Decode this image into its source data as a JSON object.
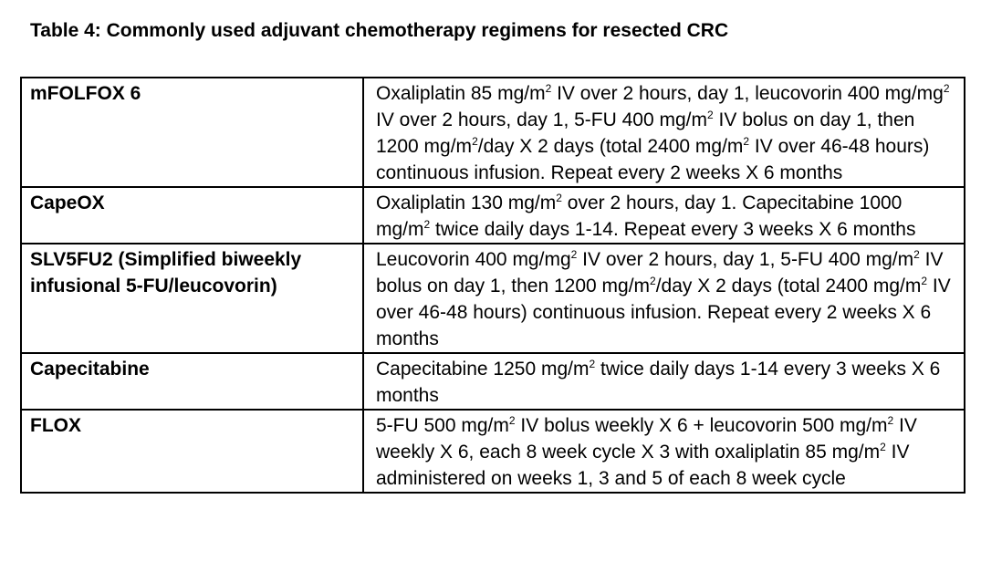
{
  "title": "Table 4: Commonly used adjuvant chemotherapy regimens for resected CRC",
  "rows": [
    {
      "regimen": "mFOLFOX 6",
      "description": [
        {
          "t": " Oxaliplatin 85 mg/m"
        },
        {
          "sup": "2"
        },
        {
          "t": " IV over 2 hours, day 1, leucovorin 400 mg/mg"
        },
        {
          "sup": "2"
        },
        {
          "t": " IV over 2 hours, day 1, 5-FU 400 mg/m"
        },
        {
          "sup": "2"
        },
        {
          "t": " IV bolus on day 1, then 1200 mg/m"
        },
        {
          "sup": "2"
        },
        {
          "t": "/day X 2 days (total 2400 mg/m"
        },
        {
          "sup": "2"
        },
        {
          "t": " IV over 46-48 hours) continuous infusion. Repeat every 2 weeks X 6 months"
        }
      ]
    },
    {
      "regimen": "CapeOX",
      "description": [
        {
          "t": " Oxaliplatin 130 mg/m"
        },
        {
          "sup": "2"
        },
        {
          "t": " over 2 hours, day 1. Capecitabine 1000 mg/m"
        },
        {
          "sup": "2"
        },
        {
          "t": " twice daily days 1-14.  Repeat every 3 weeks X 6 months"
        }
      ]
    },
    {
      "regimen": "SLV5FU2 (Simplified biweekly infusional 5-FU/leucovorin)",
      "description": [
        {
          "t": " Leucovorin 400 mg/mg"
        },
        {
          "sup": "2"
        },
        {
          "t": " IV over 2 hours, day 1, 5-FU 400 mg/m"
        },
        {
          "sup": "2"
        },
        {
          "t": " IV bolus on day 1, then 1200 mg/m"
        },
        {
          "sup": "2"
        },
        {
          "t": "/day X 2 days (total 2400 mg/m"
        },
        {
          "sup": "2"
        },
        {
          "t": " IV over 46-48 hours) continuous infusion. Repeat every 2 weeks X 6 months"
        }
      ]
    },
    {
      "regimen": "Capecitabine",
      "description": [
        {
          "t": " Capecitabine 1250 mg/m"
        },
        {
          "sup": "2"
        },
        {
          "t": " twice daily days 1-14 every 3 weeks X 6 months"
        }
      ]
    },
    {
      "regimen": "FLOX",
      "description": [
        {
          "t": " 5-FU 500 mg/m"
        },
        {
          "sup": "2"
        },
        {
          "t": " IV bolus weekly X 6 + leucovorin 500 mg/m"
        },
        {
          "sup": "2"
        },
        {
          "t": " IV weekly X 6, each 8 week cycle X 3 with oxaliplatin 85 mg/m"
        },
        {
          "sup": "2"
        },
        {
          "t": " IV administered on weeks 1, 3 and 5 of each 8 week cycle"
        }
      ]
    }
  ]
}
